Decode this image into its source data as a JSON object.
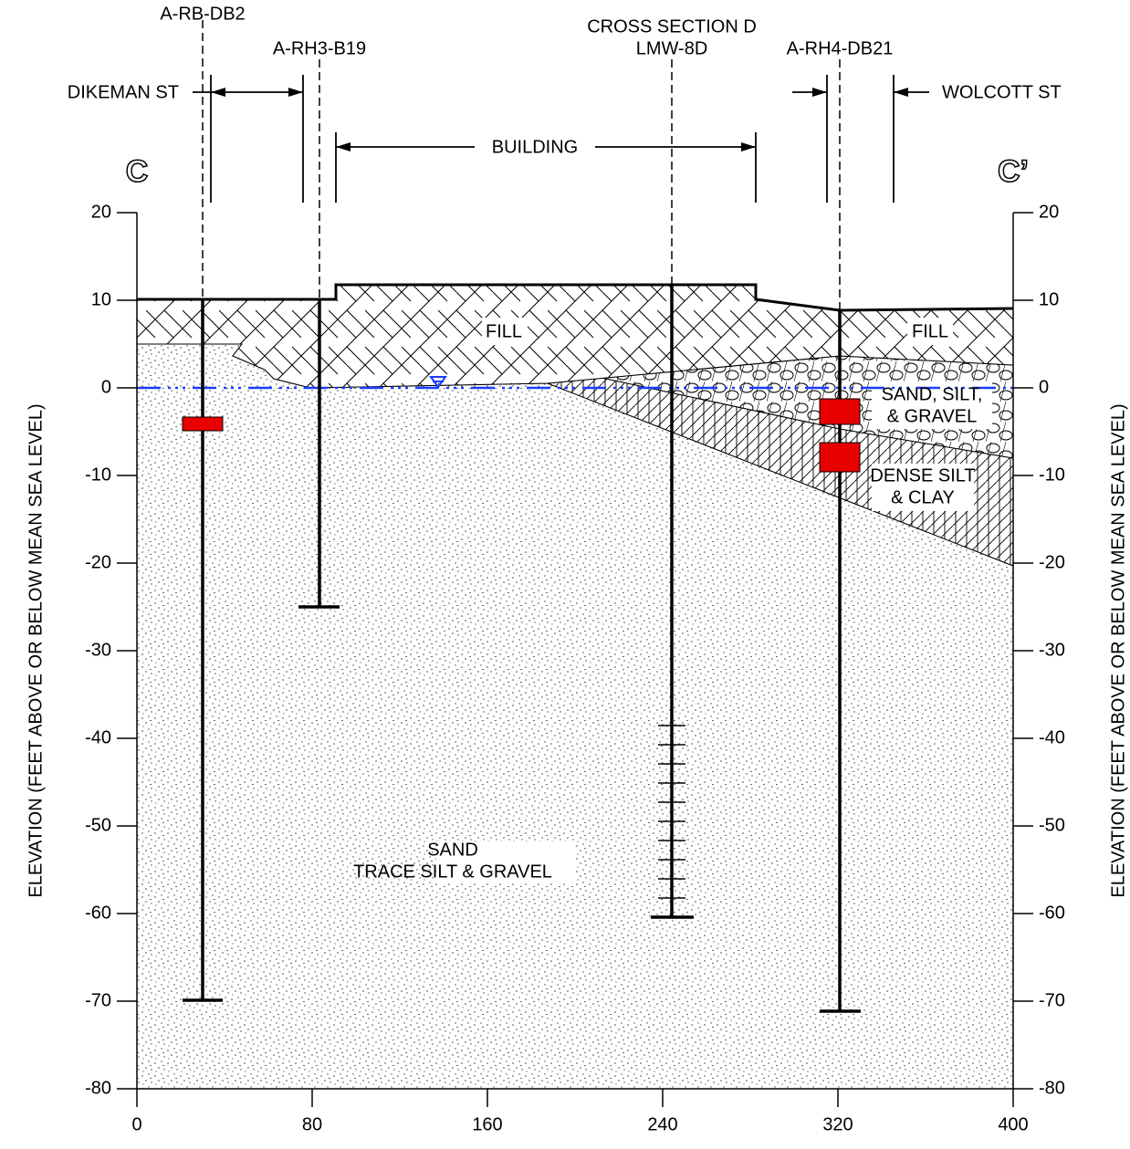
{
  "section": {
    "left": "C",
    "right": "C’"
  },
  "borings": [
    {
      "label": "A-RB-DB2"
    },
    {
      "label": "A-RH3-B19"
    },
    {
      "label": "CROSS SECTION D"
    },
    {
      "label": "LMW-8D"
    },
    {
      "label": "A-RH4-DB21"
    }
  ],
  "streets": {
    "left": "DIKEMAN ST",
    "right": "WOLCOTT ST"
  },
  "building": "BUILDING",
  "layers": {
    "fill_left": "FILL",
    "fill_right": "FILL",
    "gravel": [
      "SAND, SILT,",
      "& GRAVEL"
    ],
    "clay": [
      "DENSE SILT",
      "& CLAY"
    ],
    "sand": [
      "SAND",
      "TRACE SILT & GRAVEL"
    ]
  },
  "axes": {
    "y_label": "ELEVATION (FEET ABOVE OR BELOW MEAN SEA LEVEL)",
    "xlim": [
      0,
      400
    ],
    "ylim": [
      -80,
      20
    ],
    "xticks": [
      0,
      80,
      160,
      240,
      320,
      400
    ],
    "yticks": [
      20,
      10,
      0,
      -10,
      -20,
      -30,
      -40,
      -50,
      -60,
      -70,
      -80
    ]
  }
}
